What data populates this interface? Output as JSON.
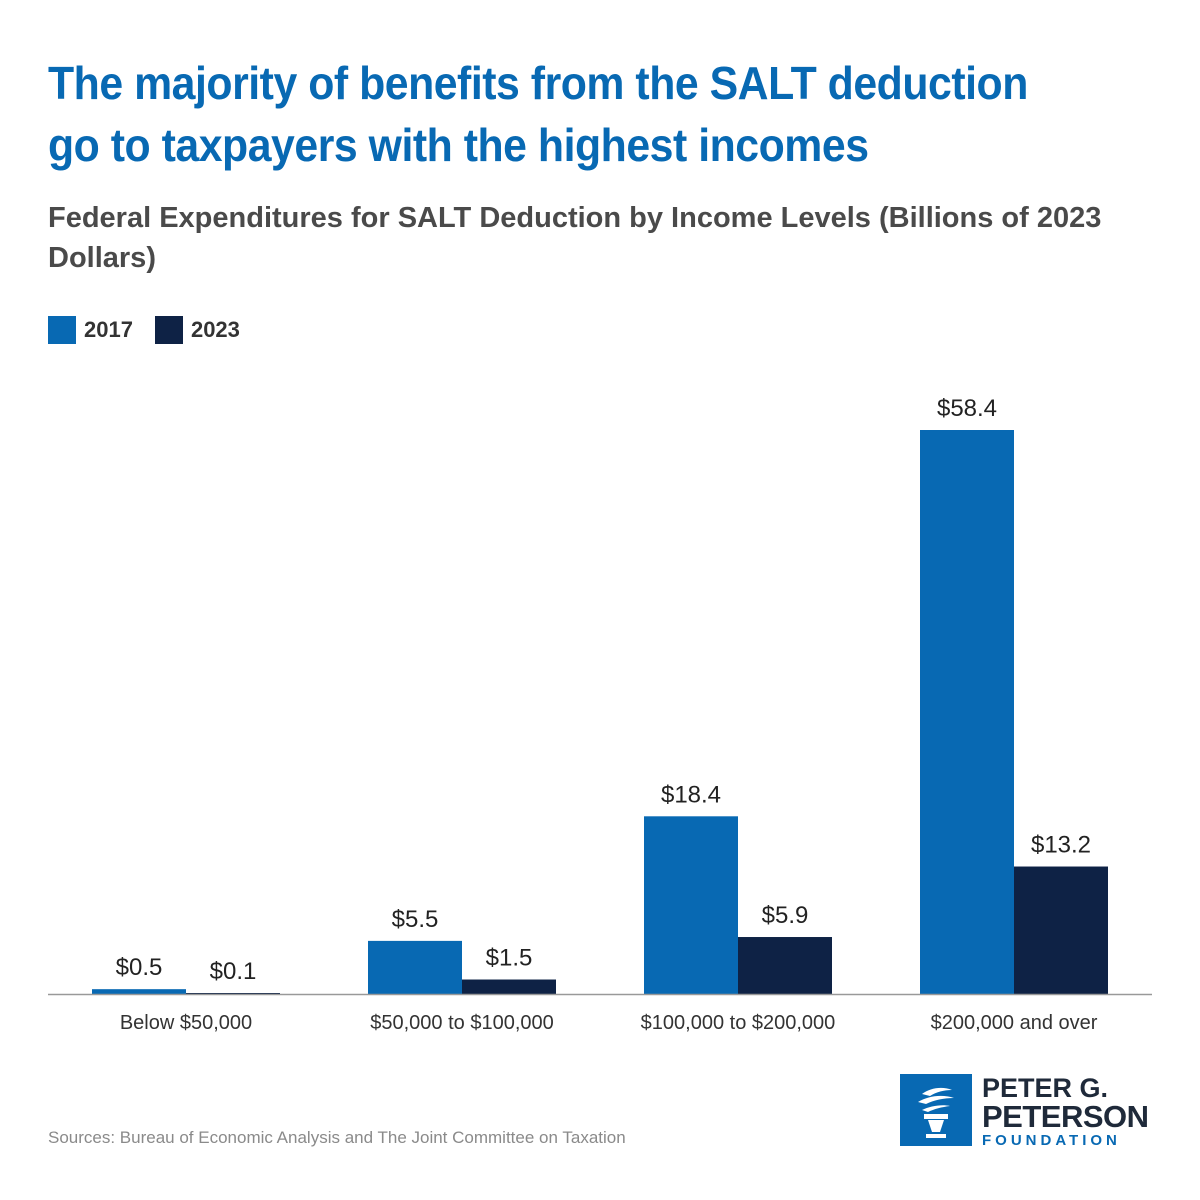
{
  "header": {
    "title": "The majority of benefits from the SALT deduction go to taxpayers with the highest incomes",
    "subtitle": "Federal Expenditures for SALT Deduction by Income Levels (Billions of 2023 Dollars)"
  },
  "legend": [
    {
      "label": "2017",
      "color": "#0869b3"
    },
    {
      "label": "2023",
      "color": "#0e2245"
    }
  ],
  "chart_data": {
    "type": "bar",
    "categories": [
      "Below $50,000",
      "$50,000 to $100,000",
      "$100,000 to $200,000",
      "$200,000 and over"
    ],
    "series": [
      {
        "name": "2017",
        "color": "#0869b3",
        "values": [
          0.5,
          5.5,
          18.4,
          58.4
        ],
        "labels": [
          "$0.5",
          "$5.5",
          "$18.4",
          "$58.4"
        ]
      },
      {
        "name": "2023",
        "color": "#0e2245",
        "values": [
          0.1,
          1.5,
          5.9,
          13.2
        ],
        "labels": [
          "$0.1",
          "$1.5",
          "$5.9",
          "$13.2"
        ]
      }
    ],
    "ylim": [
      0,
      58.4
    ],
    "grid": false,
    "legend_position": "top-left"
  },
  "footer": {
    "source": "Sources: Bureau of Economic Analysis and The Joint Committee on Taxation",
    "logo_line1": "PETER G.",
    "logo_line2": "PETERSON",
    "logo_line3": "FOUNDATION"
  }
}
